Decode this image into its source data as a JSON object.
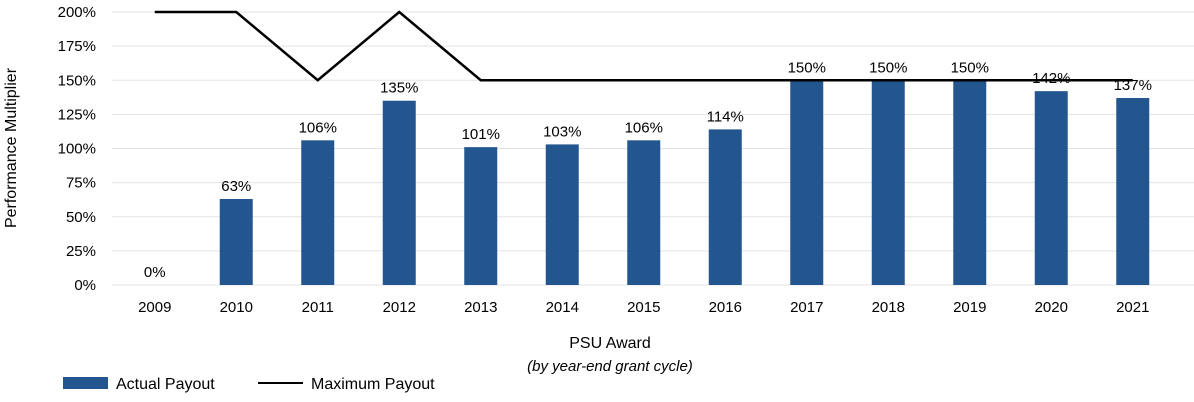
{
  "chart_data": {
    "type": "bar",
    "xlabel": "PSU Award",
    "xlabel_sub": "(by year-end grant cycle)",
    "ylabel": "Performance Multiplier",
    "ylim": [
      0,
      200
    ],
    "y_ticks": [
      "0%",
      "25%",
      "50%",
      "75%",
      "100%",
      "125%",
      "150%",
      "175%",
      "200%"
    ],
    "grid": true,
    "legend_position": "bottom-left",
    "categories": [
      "2009",
      "2010",
      "2011",
      "2012",
      "2013",
      "2014",
      "2015",
      "2016",
      "2017",
      "2018",
      "2019",
      "2020",
      "2021"
    ],
    "series": [
      {
        "name": "Actual Payout",
        "kind": "bar",
        "color": "#23568f",
        "values": [
          0,
          63,
          106,
          135,
          101,
          103,
          106,
          114,
          150,
          150,
          150,
          142,
          137
        ],
        "labels": [
          "0%",
          "63%",
          "106%",
          "135%",
          "101%",
          "103%",
          "106%",
          "114%",
          "150%",
          "150%",
          "150%",
          "142%",
          "137%"
        ]
      },
      {
        "name": "Maximum Payout",
        "kind": "line",
        "color": "#000000",
        "values": [
          200,
          200,
          150,
          200,
          150,
          150,
          150,
          150,
          150,
          150,
          150,
          150,
          150
        ]
      }
    ]
  }
}
